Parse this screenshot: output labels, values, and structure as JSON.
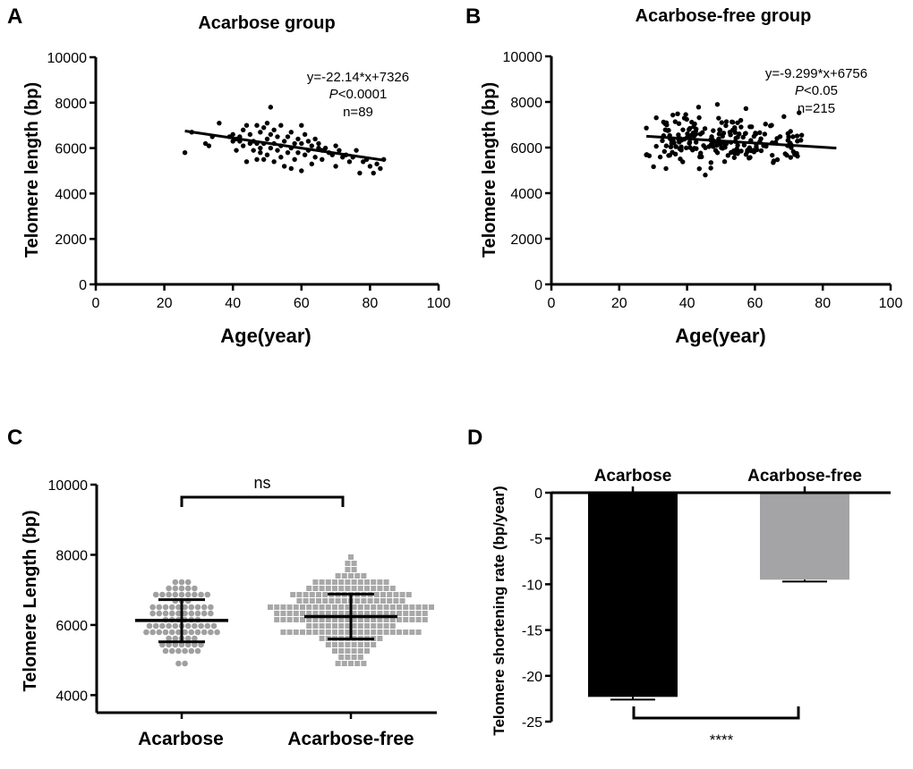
{
  "chart_data": [
    {
      "panel": "A",
      "type": "scatter",
      "title": "Acarbose group",
      "xlabel": "Age(year)",
      "ylabel": "Telomere length (bp)",
      "xlim": [
        0,
        100
      ],
      "ylim": [
        0,
        10000
      ],
      "xticks": [
        0,
        20,
        40,
        60,
        80,
        100
      ],
      "yticks": [
        0,
        2000,
        4000,
        6000,
        8000,
        10000
      ],
      "regression": {
        "slope": -22.14,
        "intercept": 7326,
        "x_range": [
          26,
          84
        ]
      },
      "annotations": {
        "equation": "y=-22.14*x+7326",
        "p_prefix": "P",
        "p_value": "<0.0001",
        "n": "n=89"
      },
      "points": [
        [
          26,
          5800
        ],
        [
          28,
          6700
        ],
        [
          32,
          6200
        ],
        [
          33,
          6100
        ],
        [
          34,
          6500
        ],
        [
          36,
          7100
        ],
        [
          39,
          6500
        ],
        [
          40,
          6300
        ],
        [
          40,
          6600
        ],
        [
          41,
          6400
        ],
        [
          41,
          5900
        ],
        [
          42,
          6500
        ],
        [
          42,
          6300
        ],
        [
          43,
          6800
        ],
        [
          43,
          6100
        ],
        [
          44,
          7000
        ],
        [
          44,
          5400
        ],
        [
          45,
          6200
        ],
        [
          45,
          6600
        ],
        [
          46,
          5900
        ],
        [
          46,
          6300
        ],
        [
          47,
          7000
        ],
        [
          47,
          6200
        ],
        [
          47,
          5500
        ],
        [
          48,
          5800
        ],
        [
          48,
          6700
        ],
        [
          48,
          6000
        ],
        [
          49,
          6900
        ],
        [
          49,
          5500
        ],
        [
          49,
          6200
        ],
        [
          50,
          7100
        ],
        [
          50,
          6400
        ],
        [
          50,
          5700
        ],
        [
          51,
          7800
        ],
        [
          51,
          6600
        ],
        [
          51,
          6000
        ],
        [
          52,
          6800
        ],
        [
          52,
          6200
        ],
        [
          52,
          5400
        ],
        [
          53,
          6500
        ],
        [
          53,
          5900
        ],
        [
          54,
          7000
        ],
        [
          54,
          6100
        ],
        [
          54,
          5600
        ],
        [
          55,
          6300
        ],
        [
          55,
          5200
        ],
        [
          56,
          6500
        ],
        [
          56,
          5800
        ],
        [
          57,
          6700
        ],
        [
          57,
          6000
        ],
        [
          57,
          5100
        ],
        [
          58,
          6200
        ],
        [
          58,
          5500
        ],
        [
          59,
          6400
        ],
        [
          59,
          5800
        ],
        [
          60,
          7000
        ],
        [
          60,
          6200
        ],
        [
          60,
          5000
        ],
        [
          61,
          6600
        ],
        [
          61,
          5700
        ],
        [
          62,
          6300
        ],
        [
          62,
          5900
        ],
        [
          63,
          6100
        ],
        [
          63,
          5300
        ],
        [
          64,
          6400
        ],
        [
          64,
          5600
        ],
        [
          65,
          6000
        ],
        [
          65,
          6200
        ],
        [
          66,
          5500
        ],
        [
          66,
          5900
        ],
        [
          67,
          6000
        ],
        [
          68,
          5800
        ],
        [
          69,
          5700
        ],
        [
          70,
          6100
        ],
        [
          70,
          5200
        ],
        [
          71,
          5900
        ],
        [
          72,
          5600
        ],
        [
          73,
          5700
        ],
        [
          74,
          5400
        ],
        [
          75,
          5600
        ],
        [
          76,
          5900
        ],
        [
          77,
          4900
        ],
        [
          78,
          5400
        ],
        [
          79,
          5500
        ],
        [
          80,
          5200
        ],
        [
          81,
          4900
        ],
        [
          82,
          5300
        ],
        [
          83,
          5100
        ],
        [
          84,
          5500
        ]
      ]
    },
    {
      "panel": "B",
      "type": "scatter",
      "title": "Acarbose-free group",
      "xlabel": "Age(year)",
      "ylabel": "Telomere length (bp)",
      "xlim": [
        0,
        100
      ],
      "ylim": [
        0,
        10000
      ],
      "xticks": [
        0,
        20,
        40,
        60,
        80,
        100
      ],
      "yticks": [
        0,
        2000,
        4000,
        6000,
        8000,
        10000
      ],
      "regression": {
        "slope": -9.299,
        "intercept": 6756,
        "x_range": [
          28,
          84
        ]
      },
      "annotations": {
        "equation": "y=-9.299*x+6756",
        "p_prefix": "P",
        "p_value": "<0.05",
        "n": "n=215"
      },
      "summary": {
        "n": 215,
        "x_min": 28,
        "x_max": 84,
        "y_center": 6300,
        "y_spread": 600,
        "y_min": 4300,
        "y_max": 8700
      }
    },
    {
      "panel": "C",
      "type": "scatter",
      "xlabel": "",
      "ylabel": "Telomere  Length (bp)",
      "ylim": [
        3500,
        10000
      ],
      "yticks": [
        4000,
        6000,
        8000,
        10000
      ],
      "categories": [
        "Acarbose",
        "Acarbose-free"
      ],
      "series": [
        {
          "category": "Acarbose",
          "color": "#a0a0a0",
          "marker": "circle",
          "mean": 6130,
          "sd_upper": 6720,
          "sd_lower": 5520,
          "n": 89,
          "y_min": 4800,
          "y_max": 7900
        },
        {
          "category": "Acarbose-free",
          "color": "#a8a8a8",
          "marker": "square",
          "mean": 6240,
          "sd_upper": 6880,
          "sd_lower": 5600,
          "n": 215,
          "y_min": 4300,
          "y_max": 8700
        }
      ],
      "annotations": {
        "significance": "ns"
      }
    },
    {
      "panel": "D",
      "type": "bar",
      "xlabel": "",
      "ylabel": "Telomere shortening rate (bp/year)",
      "ylim": [
        -25,
        0
      ],
      "yticks": [
        0,
        -5,
        -10,
        -15,
        -20,
        -25
      ],
      "categories": [
        "Acarbose",
        "Acarbose-free"
      ],
      "values": [
        -22.3,
        -9.5
      ],
      "errors": [
        0.3,
        0.2
      ],
      "colors": [
        "#000000",
        "#a4a4a6"
      ],
      "annotations": {
        "significance": "****"
      }
    }
  ]
}
